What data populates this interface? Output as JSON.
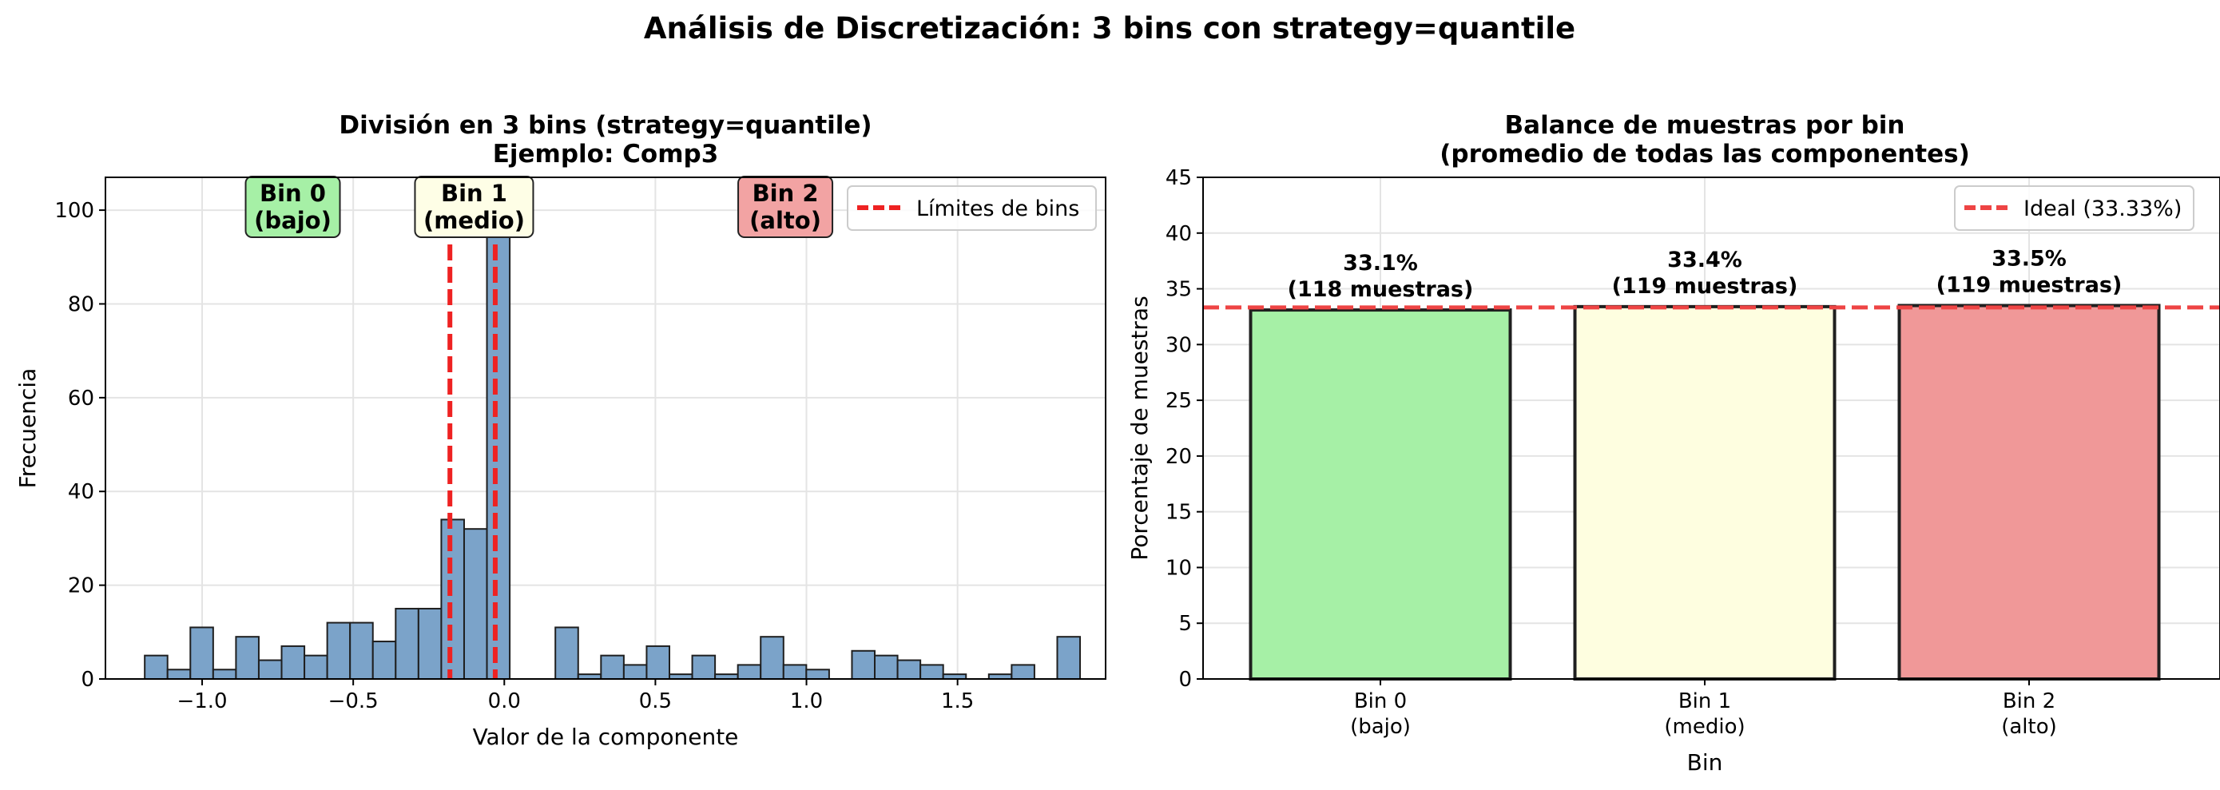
{
  "suptitle": "Análisis de Discretización: 3 bins con strategy=quantile",
  "chart_data": [
    {
      "type": "bar",
      "subtype": "histogram",
      "title_line1": "División en 3 bins (strategy=quantile)",
      "title_line2": "Ejemplo: Comp3",
      "xlabel": "Valor de la componente",
      "ylabel": "Frecuencia",
      "xlim": [
        -1.32,
        1.99
      ],
      "ylim": [
        0,
        107
      ],
      "xticks": [
        -1.0,
        -0.5,
        0.0,
        0.5,
        1.0,
        1.5
      ],
      "xtick_labels": [
        "−1.0",
        "−0.5",
        "0.0",
        "0.5",
        "1.0",
        "1.5"
      ],
      "yticks": [
        0,
        20,
        40,
        60,
        80,
        100
      ],
      "grid": true,
      "bar_color": "#7ba3c9",
      "bin_edges_start": -1.19,
      "bin_width": 0.0755,
      "counts": [
        5,
        2,
        11,
        2,
        9,
        4,
        7,
        5,
        12,
        12,
        8,
        15,
        15,
        34,
        32,
        103,
        0,
        0,
        11,
        1,
        5,
        3,
        7,
        1,
        5,
        1,
        3,
        9,
        3,
        2,
        0,
        6,
        5,
        4,
        3,
        1,
        0,
        1,
        3,
        0,
        9
      ],
      "boundaries": [
        -0.18,
        -0.03
      ],
      "boundary_color": "#ee2222",
      "legend": {
        "label": "Límites de bins",
        "position": "upper right"
      },
      "region_labels": [
        {
          "line1": "Bin 0",
          "line2": "(bajo)",
          "x": -0.7,
          "color": "#a6f0a6"
        },
        {
          "line1": "Bin 1",
          "line2": "(medio)",
          "x": -0.1,
          "color": "#fefee6"
        },
        {
          "line1": "Bin 2",
          "line2": "(alto)",
          "x": 0.93,
          "color": "#f2a3a3"
        }
      ]
    },
    {
      "type": "bar",
      "title_line1": "Balance de muestras por bin",
      "title_line2": "(promedio de todas las componentes)",
      "xlabel": "Bin",
      "ylabel": "Porcentaje de muestras",
      "ylim": [
        0,
        45
      ],
      "yticks": [
        0,
        5,
        10,
        15,
        20,
        25,
        30,
        35,
        40,
        45
      ],
      "grid": true,
      "categories": [
        {
          "line1": "Bin 0",
          "line2": "(bajo)"
        },
        {
          "line1": "Bin 1",
          "line2": "(medio)"
        },
        {
          "line1": "Bin 2",
          "line2": "(alto)"
        }
      ],
      "values": [
        33.1,
        33.4,
        33.5
      ],
      "value_labels": [
        "33.1%",
        "33.4%",
        "33.5%"
      ],
      "count_labels": [
        "(118 muestras)",
        "(119 muestras)",
        "(119 muestras)"
      ],
      "colors": [
        "#a6f0a6",
        "#fefee0",
        "#f09898"
      ],
      "ideal_line": {
        "value": 33.33,
        "label": "Ideal (33.33%)",
        "color": "#ee4444"
      },
      "legend_position": "upper right"
    }
  ]
}
